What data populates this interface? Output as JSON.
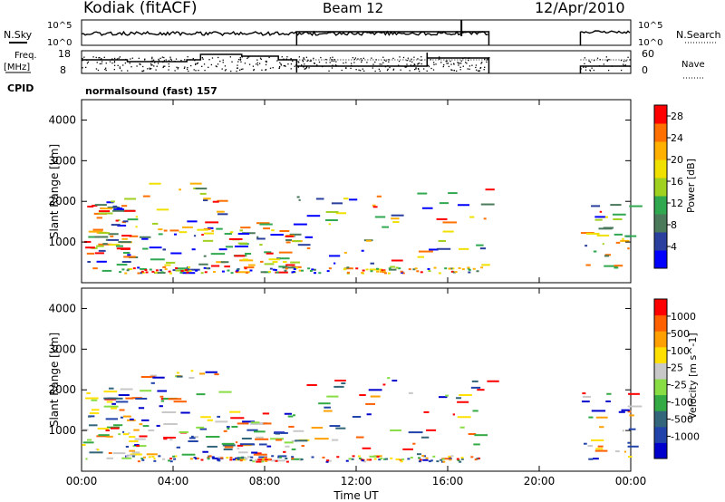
{
  "header": {
    "station": "Kodiak (fitACF)",
    "beam": "Beam 12",
    "date": "12/Apr/2010"
  },
  "top_panels": {
    "nsky_label": "N.Sky",
    "nsky_ticks": [
      "10^5",
      "10^0"
    ],
    "nsearch_label": "N.Search",
    "nsearch_ticks": [
      "10^5",
      "10^0"
    ],
    "freq_label": "Freq.",
    "freq_unit": "[MHz]",
    "freq_ticks": [
      "18",
      "8"
    ],
    "nave_label": "Nave",
    "nave_ticks": [
      "60",
      "0"
    ],
    "cpid_label": "CPID",
    "cpid_text": "normalsound (fast) 157"
  },
  "colors": {
    "power": [
      "#0000ff",
      "#2a3f9e",
      "#4a7a5a",
      "#2fa84f",
      "#a0d020",
      "#f0e000",
      "#ffb000",
      "#ff7000",
      "#ff0000"
    ],
    "velocity": [
      "#0000cc",
      "#2244aa",
      "#33667a",
      "#33aa44",
      "#88dd44",
      "#c8c8c8",
      "#ffe000",
      "#ffa000",
      "#ff6000",
      "#ff0000"
    ]
  },
  "chart_data": [
    {
      "type": "heatmap",
      "title": "Power",
      "ylabel": "Slant Range [km]",
      "xlabel": "Time UT",
      "x_range": [
        "00:00",
        "24:00"
      ],
      "ylim": [
        0,
        4500
      ],
      "x_ticks": [
        "00:00",
        "04:00",
        "08:00",
        "12:00",
        "16:00",
        "20:00",
        "00:00"
      ],
      "y_ticks": [
        "1000",
        "2000",
        "3000",
        "4000"
      ],
      "colorbar": {
        "label": "Power [dB]",
        "ticks": [
          "4",
          "8",
          "12",
          "16",
          "20",
          "24",
          "28"
        ],
        "range": [
          0,
          30
        ]
      }
    },
    {
      "type": "heatmap",
      "title": "Velocity",
      "ylabel": "Slant Range [km]",
      "xlabel": "Time UT",
      "x_range": [
        "00:00",
        "24:00"
      ],
      "ylim": [
        0,
        4500
      ],
      "x_ticks": [
        "00:00",
        "04:00",
        "08:00",
        "12:00",
        "16:00",
        "20:00",
        "00:00"
      ],
      "y_ticks": [
        "1000",
        "2000",
        "3000",
        "4000"
      ],
      "colorbar": {
        "label": "Velocity [m s^-1]",
        "ticks": [
          "1000",
          "500",
          "100",
          "25",
          "-25",
          "-100",
          "-500",
          "-1000"
        ]
      }
    }
  ]
}
